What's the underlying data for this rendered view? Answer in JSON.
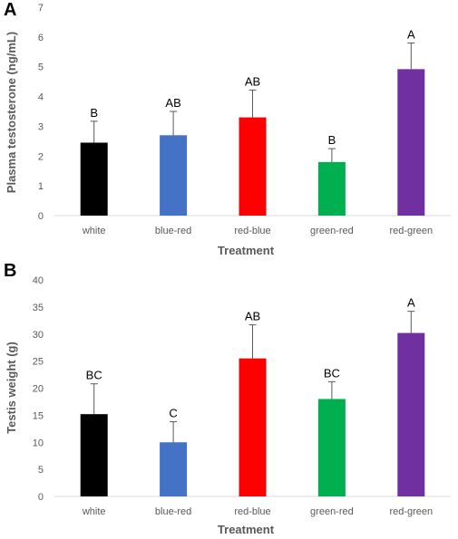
{
  "chart_data": [
    {
      "panel": "A",
      "type": "bar",
      "categories": [
        "white",
        "blue-red",
        "red-blue",
        "green-red",
        "red-green"
      ],
      "values": [
        2.45,
        2.7,
        3.3,
        1.8,
        4.92
      ],
      "errors": [
        0.72,
        0.8,
        0.92,
        0.45,
        0.88
      ],
      "significance": [
        "B",
        "AB",
        "AB",
        "B",
        "A"
      ],
      "colors": [
        "#000000",
        "#4472C4",
        "#FF0000",
        "#00B050",
        "#7030A0"
      ],
      "xlabel": "Treatment",
      "ylabel": "Plasma testosterone (ng/mL)",
      "ylim": [
        0,
        7
      ],
      "yticks": [
        0,
        1,
        2,
        3,
        4,
        5,
        6,
        7
      ],
      "grid": false
    },
    {
      "panel": "B",
      "type": "bar",
      "categories": [
        "white",
        "blue-red",
        "red-blue",
        "green-red",
        "red-green"
      ],
      "values": [
        15.2,
        10.0,
        25.5,
        18.0,
        30.2
      ],
      "errors": [
        5.6,
        3.8,
        6.2,
        3.2,
        4.0
      ],
      "significance": [
        "BC",
        "C",
        "AB",
        "BC",
        "A"
      ],
      "colors": [
        "#000000",
        "#4472C4",
        "#FF0000",
        "#00B050",
        "#7030A0"
      ],
      "xlabel": "Treatment",
      "ylabel": "Testis weight (g)",
      "ylim": [
        0,
        40
      ],
      "yticks": [
        0,
        5,
        10,
        15,
        20,
        25,
        30,
        35,
        40
      ],
      "grid": false
    }
  ]
}
